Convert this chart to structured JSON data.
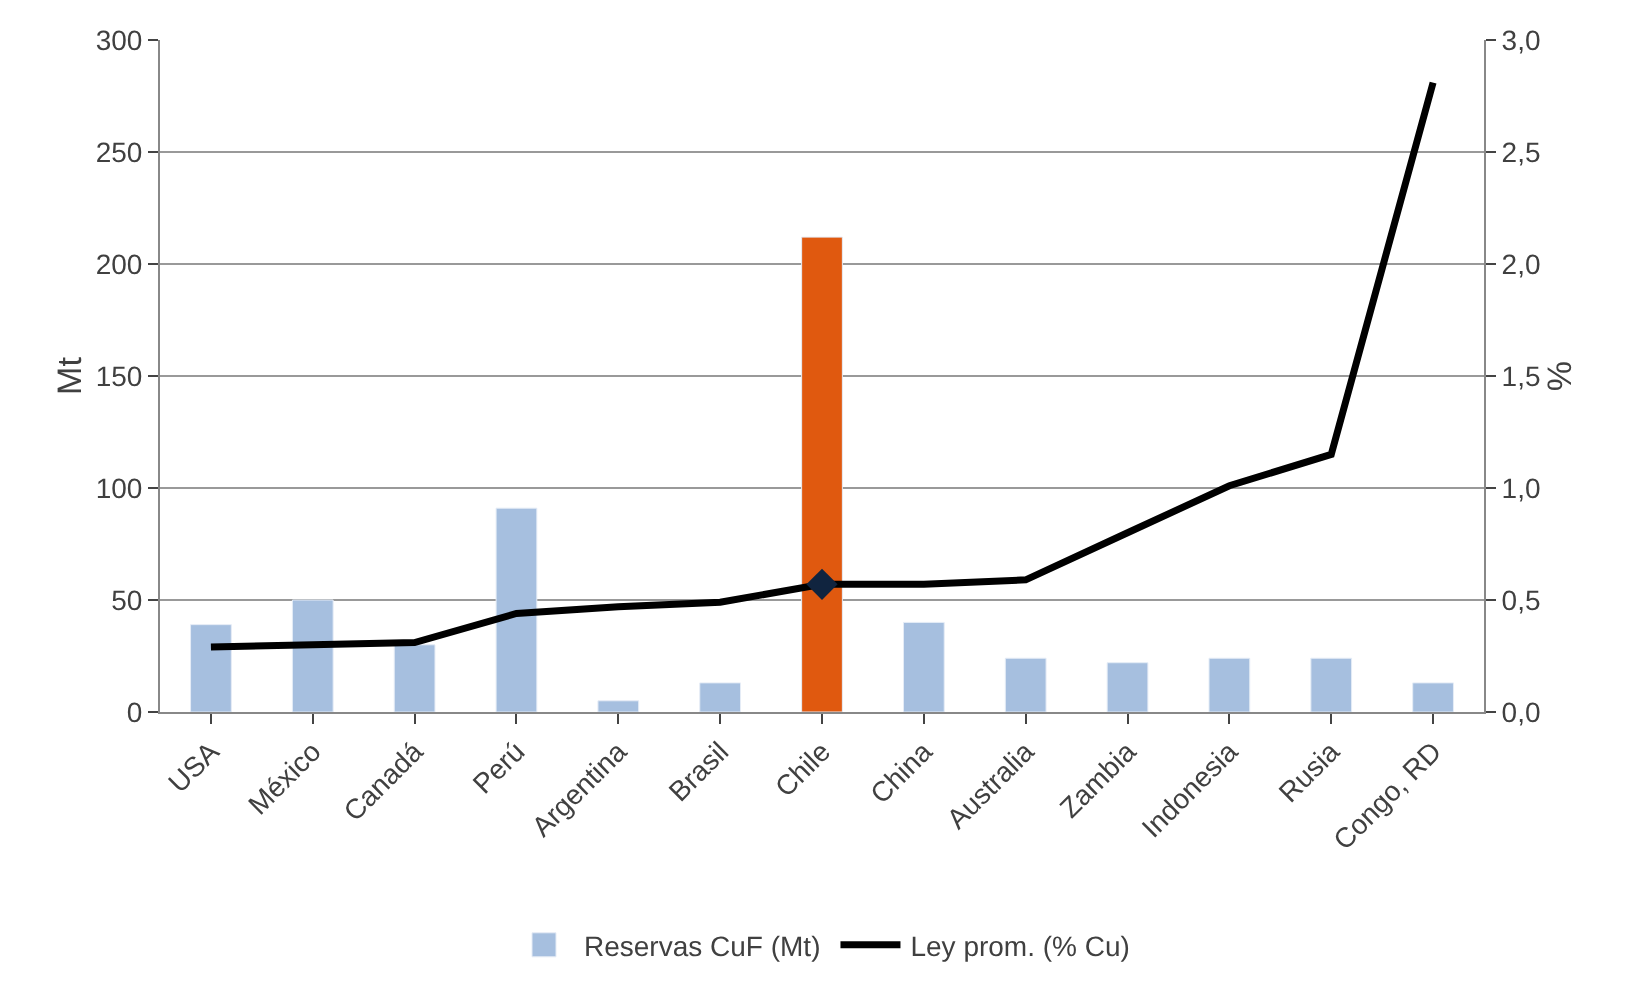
{
  "chart_data": {
    "type": "bar",
    "categories": [
      "USA",
      "México",
      "Canadá",
      "Perú",
      "Argentina",
      "Brasil",
      "Chile",
      "China",
      "Australia",
      "Zambia",
      "Indonesia",
      "Rusia",
      "Congo, RD"
    ],
    "ylabel": "Mt",
    "y2label": "%",
    "series": [
      {
        "name": "Reservas CuF (Mt)",
        "color": "#a6bfdf",
        "colors": [
          "#a6bfdf",
          "#a6bfdf",
          "#a6bfdf",
          "#a6bfdf",
          "#a6bfdf",
          "#a6bfdf",
          "#e0590f",
          "#a6bfdf",
          "#a6bfdf",
          "#a6bfdf",
          "#a6bfdf",
          "#a6bfdf",
          "#a6bfdf"
        ],
        "values": [
          39,
          50,
          30,
          91,
          5,
          13,
          212,
          40,
          24,
          22,
          24,
          24,
          13
        ]
      },
      {
        "name": "Ley prom. (% Cu)",
        "type": "line",
        "axis": "y2",
        "color": "#000000",
        "values": [
          0.29,
          0.3,
          0.31,
          0.44,
          0.47,
          0.49,
          0.57,
          0.57,
          0.59,
          0.8,
          1.01,
          1.15,
          2.81
        ]
      },
      {
        "type": "scatter",
        "axis": "y2",
        "marker": "diamond",
        "color": "#10243f",
        "x": [
          "Chile"
        ],
        "values": [
          0.57
        ]
      }
    ],
    "ylim": [
      0,
      300
    ],
    "yticks": [
      0,
      50,
      100,
      150,
      200,
      250,
      300
    ],
    "y2lim": [
      0,
      3
    ],
    "y2ticks": [
      {
        "value": 0,
        "label": "0,0"
      },
      {
        "value": 0.5,
        "label": "0,5"
      },
      {
        "value": 1,
        "label": "1,0"
      },
      {
        "value": 1.5,
        "label": "1,5"
      },
      {
        "value": 2,
        "label": "2,0"
      },
      {
        "value": 2.5,
        "label": "2,5"
      },
      {
        "value": 3,
        "label": "3,0"
      }
    ],
    "grid": "y",
    "legend": "bottom"
  }
}
